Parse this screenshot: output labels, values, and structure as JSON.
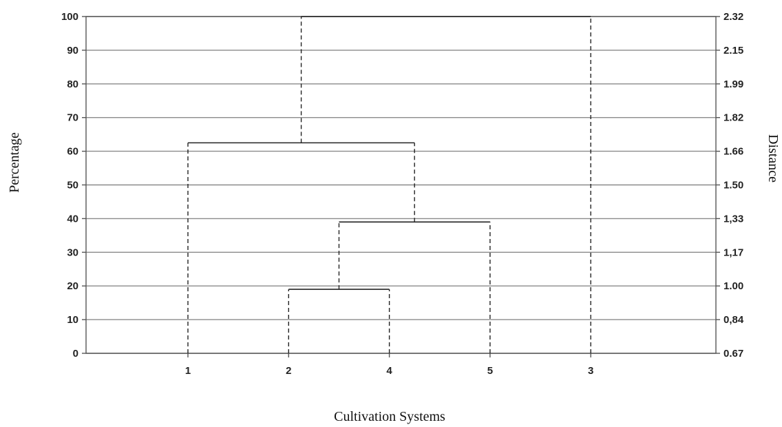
{
  "chart_data": {
    "type": "dendrogram",
    "xlabel": "Cultivation Systems",
    "ylabel_left": "Percentage",
    "ylabel_right": "Distance",
    "ylim": [
      0,
      100
    ],
    "left_ticks": [
      "0",
      "10",
      "20",
      "30",
      "40",
      "50",
      "60",
      "70",
      "80",
      "90",
      "100"
    ],
    "right_ticks": [
      "0.67",
      "0,84",
      "1.00",
      "1,17",
      "1,33",
      "1.50",
      "1.66",
      "1.82",
      "1.99",
      "2.15",
      "2.32"
    ],
    "leaves": [
      "1",
      "2",
      "4",
      "5",
      "3"
    ],
    "merges": [
      {
        "left": "2",
        "right": "4",
        "height": 19
      },
      {
        "left": "2-4",
        "right": "5",
        "height": 39
      },
      {
        "left": "1",
        "right": "2-4-5",
        "height": 62.5
      },
      {
        "left": "1-2-4-5",
        "right": "3",
        "height": 100
      }
    ],
    "grid": true
  }
}
